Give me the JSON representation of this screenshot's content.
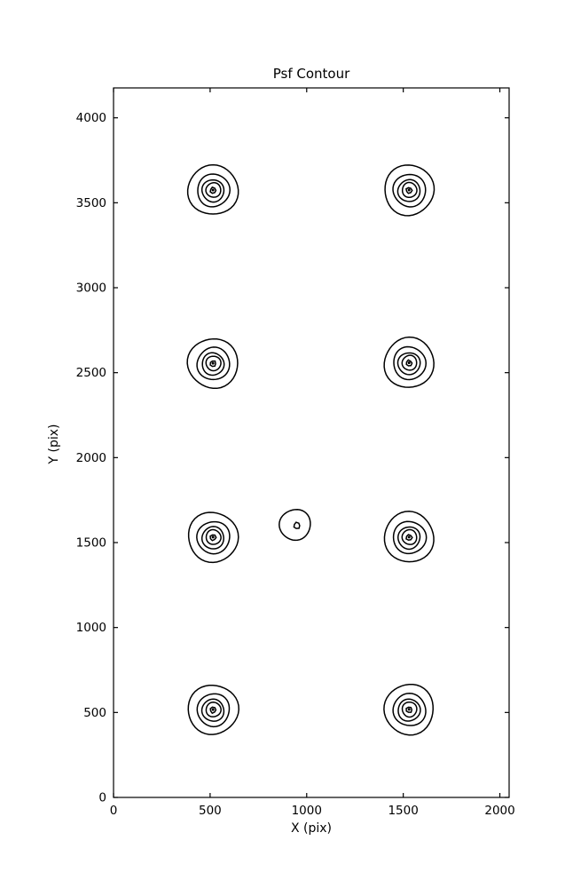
{
  "chart_data": {
    "type": "contour",
    "title": "Psf Contour",
    "xlabel": "X (pix)",
    "ylabel": "Y (pix)",
    "xlim": [
      0,
      2048
    ],
    "ylim": [
      0,
      4176
    ],
    "xticks": [
      0,
      500,
      1000,
      1500,
      2000
    ],
    "yticks": [
      0,
      500,
      1000,
      1500,
      2000,
      2500,
      3000,
      3500,
      4000
    ],
    "grid": false,
    "legend": false,
    "line_color": "#000000",
    "background": "#ffffff",
    "sources": [
      {
        "x": 515,
        "y": 3575,
        "ring_radii": [
          129,
          84,
          57,
          38,
          15
        ],
        "core_dot_radius": 7
      },
      {
        "x": 1530,
        "y": 3575,
        "ring_radii": [
          129,
          84,
          57,
          38,
          15
        ],
        "core_dot_radius": 7
      },
      {
        "x": 515,
        "y": 2555,
        "ring_radii": [
          129,
          84,
          57,
          38,
          15
        ],
        "core_dot_radius": 7
      },
      {
        "x": 1530,
        "y": 2558,
        "ring_radii": [
          129,
          84,
          57,
          38,
          15
        ],
        "core_dot_radius": 7
      },
      {
        "x": 515,
        "y": 1532,
        "ring_radii": [
          129,
          84,
          57,
          38,
          15
        ],
        "core_dot_radius": 7
      },
      {
        "x": 940,
        "y": 1605,
        "ring_radii": [
          80,
          16
        ],
        "core_dot_radius": 0
      },
      {
        "x": 1530,
        "y": 1532,
        "ring_radii": [
          129,
          84,
          57,
          38,
          15
        ],
        "core_dot_radius": 7
      },
      {
        "x": 515,
        "y": 517,
        "ring_radii": [
          129,
          84,
          57,
          38,
          15
        ],
        "core_dot_radius": 7
      },
      {
        "x": 1530,
        "y": 518,
        "ring_radii": [
          129,
          84,
          57,
          38,
          15
        ],
        "core_dot_radius": 7
      }
    ]
  }
}
